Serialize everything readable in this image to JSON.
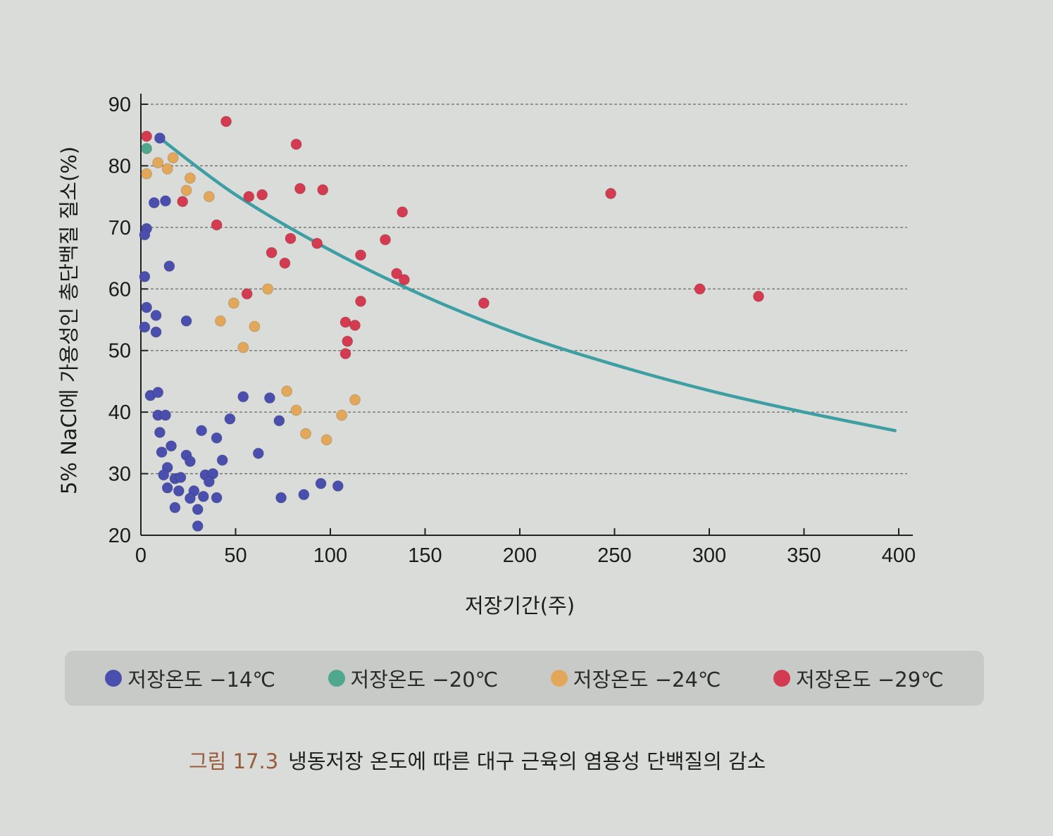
{
  "chart_data": {
    "type": "scatter",
    "title": "",
    "xlabel": "저장기간(주)",
    "ylabel": "5% NaCl에 가용성인 총단백질 질소(%)",
    "xlim": [
      0,
      400
    ],
    "ylim": [
      20,
      90
    ],
    "xticks": [
      "0",
      "50",
      "100",
      "150",
      "200",
      "250",
      "300",
      "350",
      "400"
    ],
    "yticks": [
      "20",
      "30",
      "40",
      "50",
      "60",
      "70",
      "80",
      "90"
    ],
    "grid": "horizontal dashed",
    "legend_position": "bottom",
    "series": [
      {
        "name": "저장온도 −14℃",
        "color": "#4a4fae",
        "points": [
          [
            10,
            84.5
          ],
          [
            7,
            74
          ],
          [
            13,
            74.3
          ],
          [
            3,
            69.8
          ],
          [
            2,
            68.8
          ],
          [
            15,
            63.7
          ],
          [
            2,
            62
          ],
          [
            3,
            57
          ],
          [
            8,
            55.7
          ],
          [
            2,
            53.8
          ],
          [
            8,
            53
          ],
          [
            24,
            54.8
          ],
          [
            5,
            42.7
          ],
          [
            9,
            43.2
          ],
          [
            9,
            39.5
          ],
          [
            13,
            39.5
          ],
          [
            10,
            36.7
          ],
          [
            11,
            33.5
          ],
          [
            16,
            34.5
          ],
          [
            24,
            33
          ],
          [
            26,
            32
          ],
          [
            32,
            37
          ],
          [
            40,
            35.8
          ],
          [
            43,
            32.2
          ],
          [
            47,
            38.9
          ],
          [
            54,
            42.5
          ],
          [
            68,
            42.3
          ],
          [
            73,
            38.6
          ],
          [
            62,
            33.3
          ],
          [
            14,
            31
          ],
          [
            12,
            29.8
          ],
          [
            18,
            29.2
          ],
          [
            21,
            29.4
          ],
          [
            28,
            27.2
          ],
          [
            34,
            29.8
          ],
          [
            38,
            30
          ],
          [
            36,
            28.7
          ],
          [
            14,
            27.7
          ],
          [
            20,
            27.2
          ],
          [
            26,
            26
          ],
          [
            33,
            26.3
          ],
          [
            40,
            26.1
          ],
          [
            18,
            24.5
          ],
          [
            30,
            24.2
          ],
          [
            30,
            21.5
          ],
          [
            74,
            26.1
          ],
          [
            86,
            26.6
          ],
          [
            95,
            28.4
          ],
          [
            104,
            28
          ]
        ]
      },
      {
        "name": "저장온도 −20℃",
        "color": "#4fa88d",
        "points": [
          [
            3,
            82.8
          ]
        ]
      },
      {
        "name": "저장온도 −24℃",
        "color": "#e2a759",
        "points": [
          [
            3,
            78.7
          ],
          [
            9,
            80.5
          ],
          [
            14,
            79.5
          ],
          [
            17,
            81.3
          ],
          [
            26,
            78
          ],
          [
            24,
            76
          ],
          [
            36,
            75
          ],
          [
            42,
            54.8
          ],
          [
            49,
            57.7
          ],
          [
            54,
            50.5
          ],
          [
            60,
            53.9
          ],
          [
            67,
            60
          ],
          [
            77,
            43.4
          ],
          [
            82,
            40.3
          ],
          [
            87,
            36.5
          ],
          [
            98,
            35.5
          ],
          [
            106,
            39.5
          ],
          [
            113,
            42
          ]
        ]
      },
      {
        "name": "저장온도 −29℃",
        "color": "#d43a50",
        "points": [
          [
            3,
            84.8
          ],
          [
            22,
            74.2
          ],
          [
            40,
            70.4
          ],
          [
            45,
            87.2
          ],
          [
            57,
            75
          ],
          [
            64,
            75.3
          ],
          [
            69,
            65.9
          ],
          [
            76,
            64.2
          ],
          [
            79,
            68.2
          ],
          [
            82,
            83.5
          ],
          [
            84,
            76.3
          ],
          [
            96,
            76.1
          ],
          [
            93,
            67.4
          ],
          [
            56,
            59.2
          ],
          [
            108,
            54.6
          ],
          [
            113,
            54.1
          ],
          [
            109,
            51.5
          ],
          [
            108,
            49.5
          ],
          [
            116,
            58
          ],
          [
            116,
            65.5
          ],
          [
            129,
            68
          ],
          [
            135,
            62.5
          ],
          [
            138,
            72.5
          ],
          [
            139,
            61.5
          ],
          [
            181,
            57.7
          ],
          [
            248,
            75.5
          ],
          [
            295,
            60
          ],
          [
            326,
            58.8
          ]
        ]
      }
    ],
    "trend_curve": {
      "color": "#3d9ea3",
      "points": [
        [
          10,
          84.5
        ],
        [
          50,
          75.3
        ],
        [
          100,
          66.3
        ],
        [
          150,
          58.8
        ],
        [
          200,
          52.6
        ],
        [
          250,
          47.7
        ],
        [
          300,
          43.5
        ],
        [
          350,
          40
        ],
        [
          398,
          37
        ]
      ]
    }
  },
  "caption": {
    "figure_number": "그림 17.3",
    "text": "냉동저장 온도에 따른 대구 근육의 염용성 단백질의 감소"
  }
}
